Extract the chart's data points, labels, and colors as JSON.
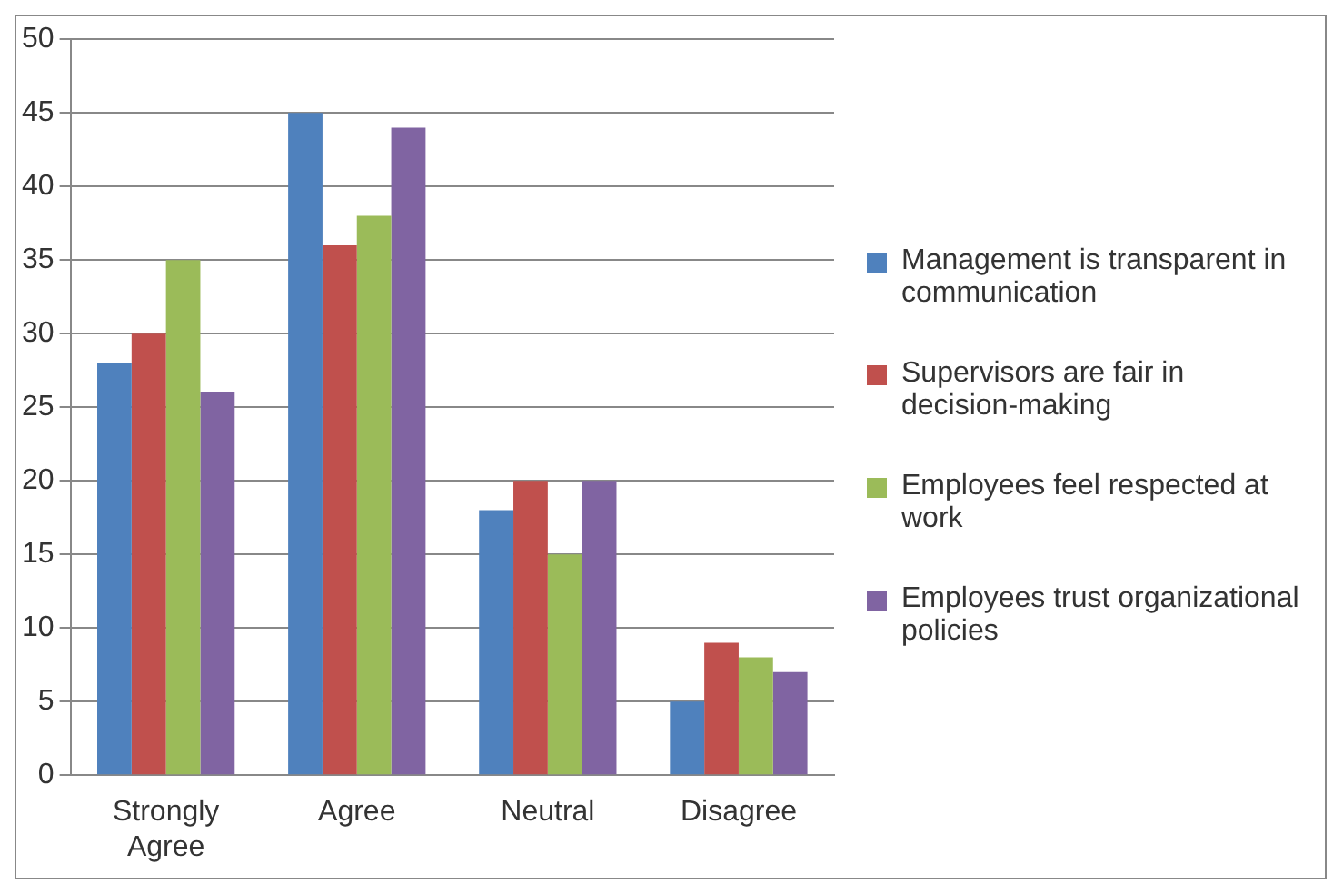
{
  "chart_data": {
    "type": "bar",
    "categories": [
      "Strongly Agree",
      "Agree",
      "Neutral",
      "Disagree"
    ],
    "series": [
      {
        "name": "Management is transparent in communication",
        "color": "#4f81bd",
        "values": [
          28,
          45,
          18,
          5
        ]
      },
      {
        "name": "Supervisors are fair in decision-making",
        "color": "#c0504d",
        "values": [
          30,
          36,
          20,
          9
        ]
      },
      {
        "name": "Employees feel respected at work",
        "color": "#9bbb59",
        "values": [
          35,
          38,
          15,
          8
        ]
      },
      {
        "name": "Employees trust organizational policies",
        "color": "#8064a2",
        "values": [
          26,
          44,
          20,
          7
        ]
      }
    ],
    "ylim": [
      0,
      50
    ],
    "yticks": [
      0,
      5,
      10,
      15,
      20,
      25,
      30,
      35,
      40,
      45,
      50
    ],
    "grid": "y",
    "legend": "right"
  }
}
